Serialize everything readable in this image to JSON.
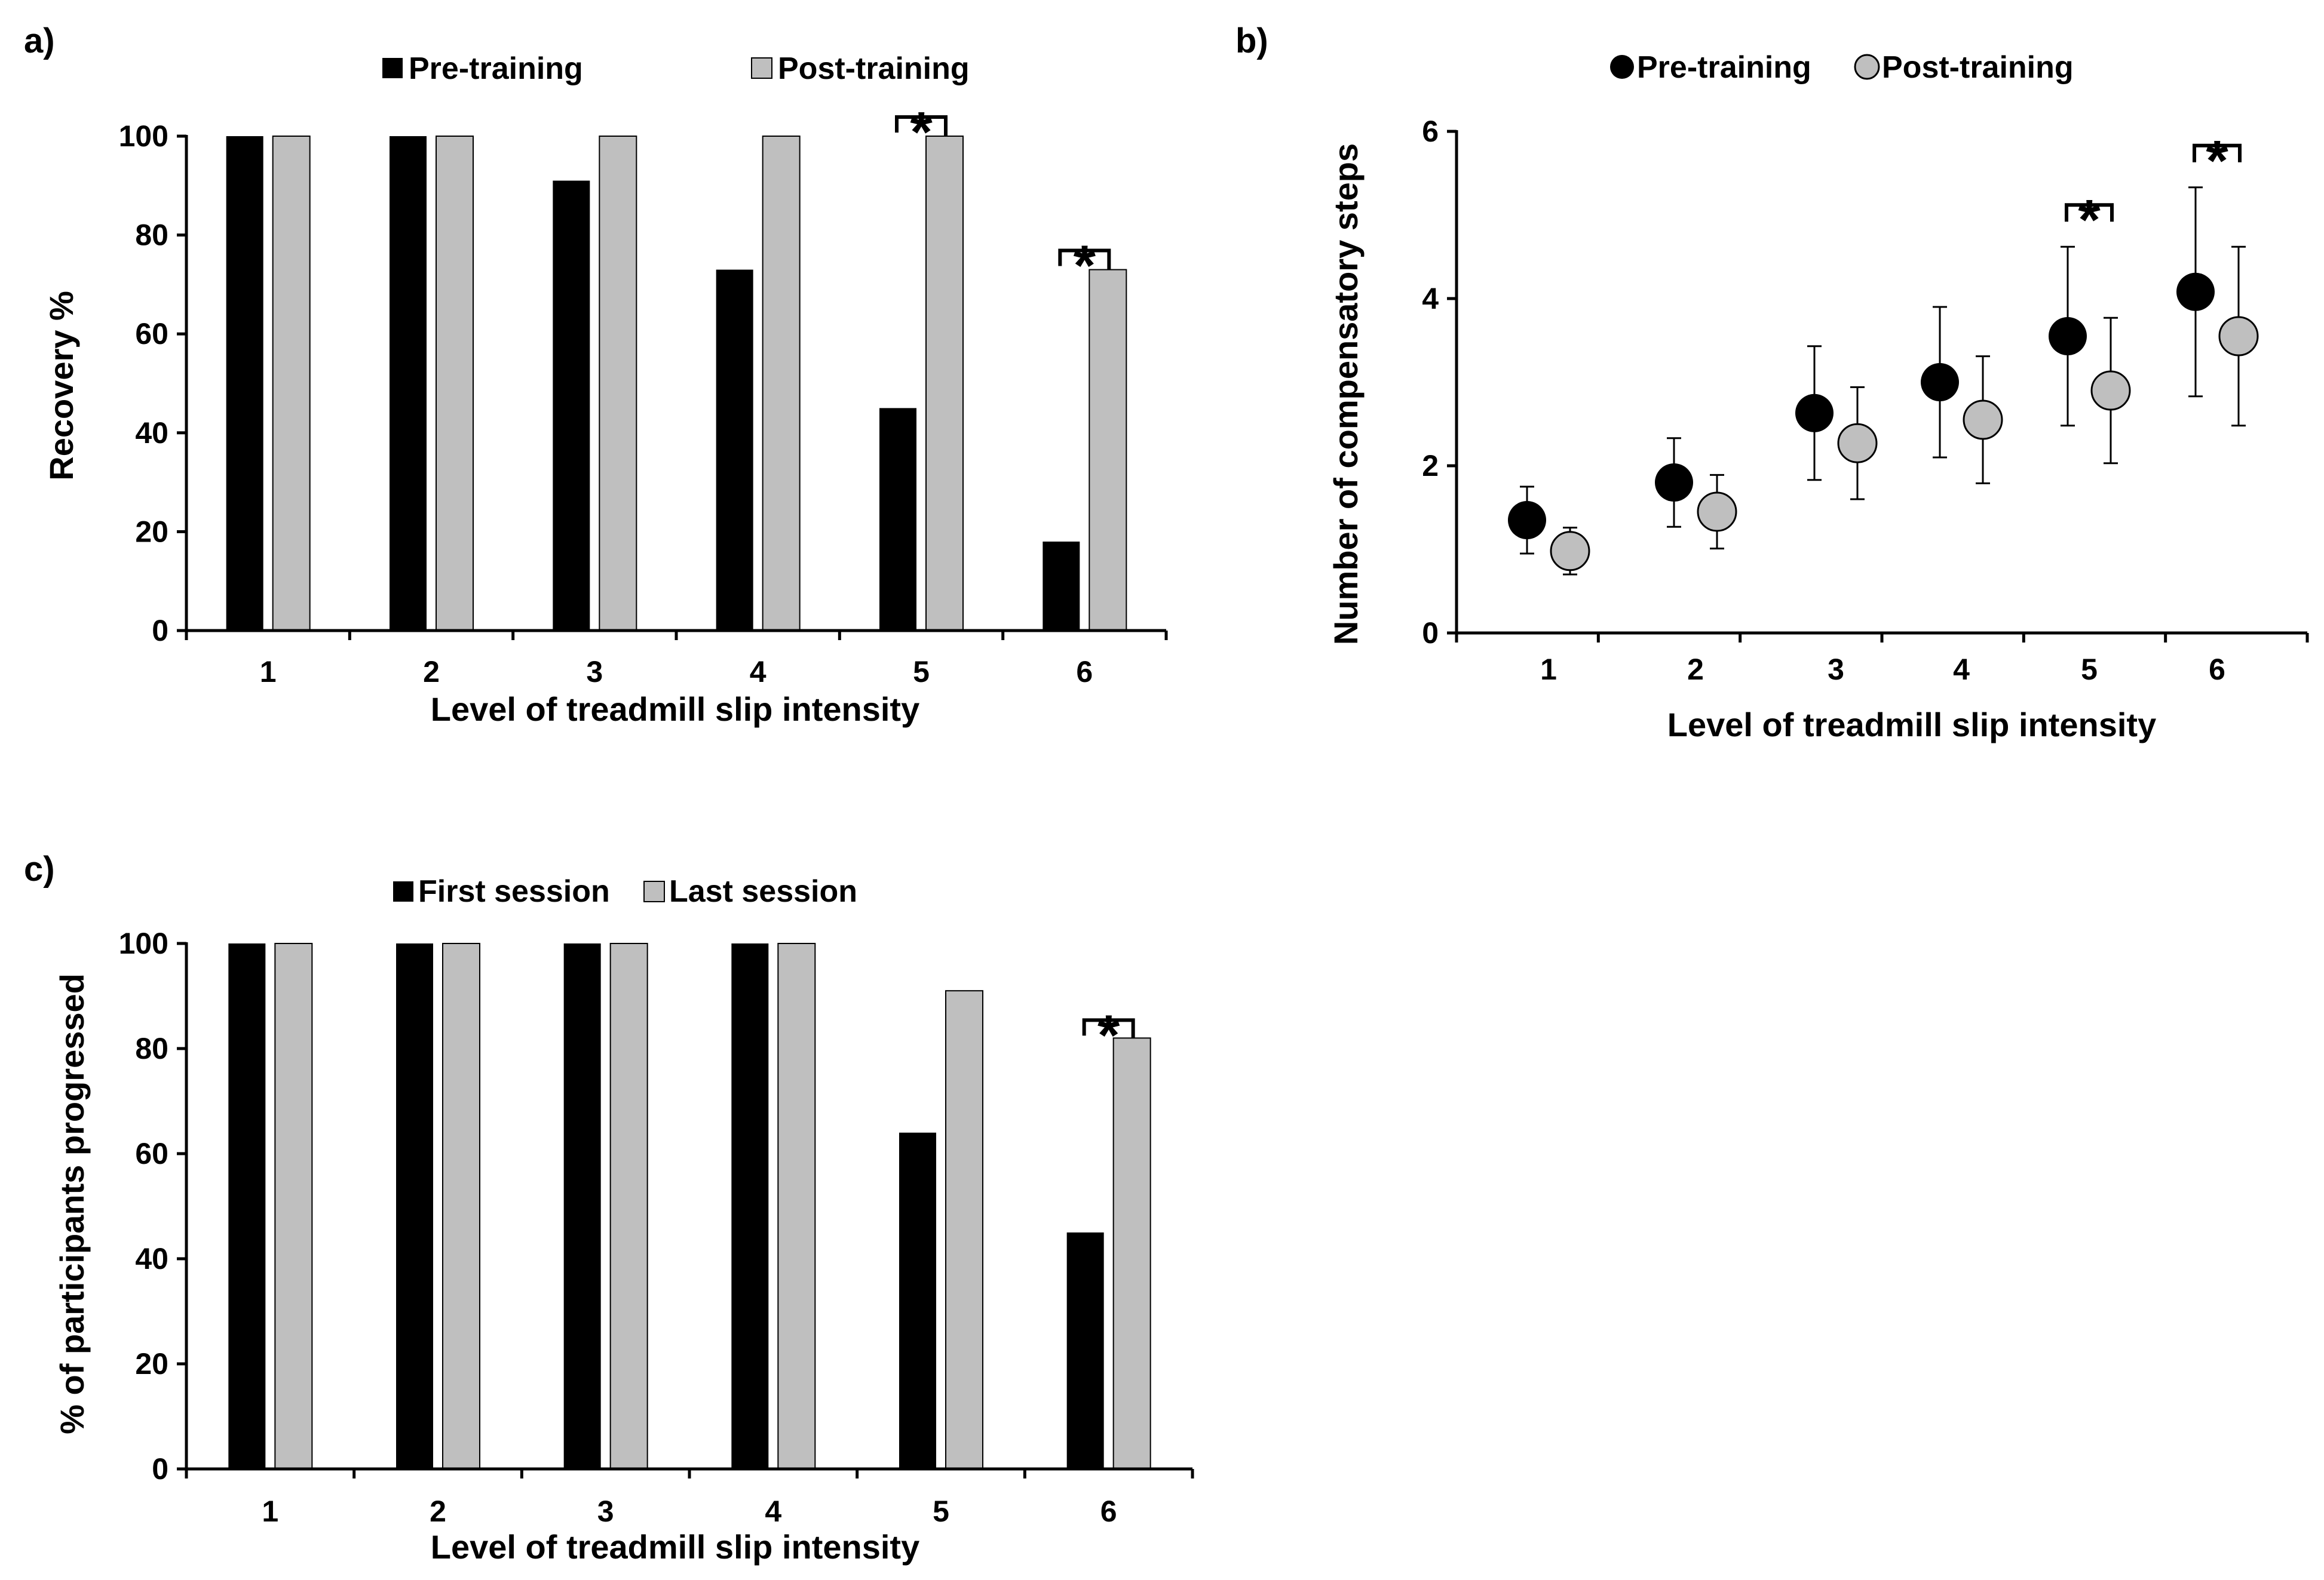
{
  "colors": {
    "pre": "#000000",
    "post": "#bfbfbf",
    "axis": "#000000",
    "edge": "#000000"
  },
  "chart_data": [
    {
      "id": "a",
      "panel_label": "a)",
      "type": "bar",
      "categories": [
        "1",
        "2",
        "3",
        "4",
        "5",
        "6"
      ],
      "series": [
        {
          "name": "Pre-training",
          "values": [
            100,
            100,
            91,
            73,
            45,
            18
          ]
        },
        {
          "name": "Post-training",
          "values": [
            100,
            100,
            100,
            100,
            100,
            73
          ]
        }
      ],
      "title": "",
      "xlabel": "Level of treadmill slip intensity",
      "ylabel": "Recovery %",
      "ylim": [
        0,
        100
      ],
      "yticks": [
        0,
        20,
        40,
        60,
        80,
        100
      ],
      "significance": [
        {
          "category": "5",
          "label": "*"
        },
        {
          "category": "6",
          "label": "*"
        }
      ],
      "grid": false,
      "legend": "top"
    },
    {
      "id": "b",
      "panel_label": "b)",
      "type": "scatter",
      "categories": [
        "1",
        "2",
        "3",
        "4",
        "5",
        "6"
      ],
      "series": [
        {
          "name": "Pre-training",
          "values": [
            1.35,
            1.8,
            2.63,
            3.0,
            3.55,
            4.08
          ],
          "errors": [
            0.4,
            0.53,
            0.8,
            0.9,
            1.07,
            1.25
          ]
        },
        {
          "name": "Post-training",
          "values": [
            0.98,
            1.45,
            2.27,
            2.55,
            2.9,
            3.55
          ],
          "errors": [
            0.28,
            0.44,
            0.67,
            0.76,
            0.87,
            1.07
          ]
        }
      ],
      "title": "",
      "xlabel": "Level of treadmill slip intensity",
      "ylabel": "Number of compensatory steps",
      "ylim": [
        0,
        6
      ],
      "yticks": [
        0,
        2,
        4,
        6
      ],
      "significance": [
        {
          "category": "5",
          "label": "*"
        },
        {
          "category": "6",
          "label": "*"
        }
      ],
      "grid": false,
      "legend": "top"
    },
    {
      "id": "c",
      "panel_label": "c)",
      "type": "bar",
      "categories": [
        "1",
        "2",
        "3",
        "4",
        "5",
        "6"
      ],
      "series": [
        {
          "name": "First session",
          "values": [
            100,
            100,
            100,
            100,
            64,
            45
          ]
        },
        {
          "name": "Last session",
          "values": [
            100,
            100,
            100,
            100,
            91,
            82
          ]
        }
      ],
      "title": "",
      "xlabel": "Level of treadmill slip intensity",
      "ylabel": "% of participants progressed",
      "ylim": [
        0,
        100
      ],
      "yticks": [
        0,
        20,
        40,
        60,
        80,
        100
      ],
      "significance": [
        {
          "category": "6",
          "label": "*"
        }
      ],
      "grid": false,
      "legend": "top"
    }
  ]
}
